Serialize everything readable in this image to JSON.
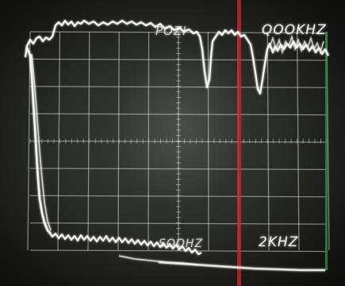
{
  "scope": {
    "labels": {
      "freq_top_left": "POZI",
      "freq_top_right": "QOOKHZ",
      "freq_bottom_left": "SOOHZ",
      "freq_bottom_right": "2KHZ"
    },
    "colors": {
      "trace": "#f4f4f0",
      "graticule": "#d9d9d4",
      "red_marker": "#c8262a",
      "green_marker": "#2f8f3f"
    },
    "grid": {
      "columns": 10,
      "rows": 8
    }
  }
}
